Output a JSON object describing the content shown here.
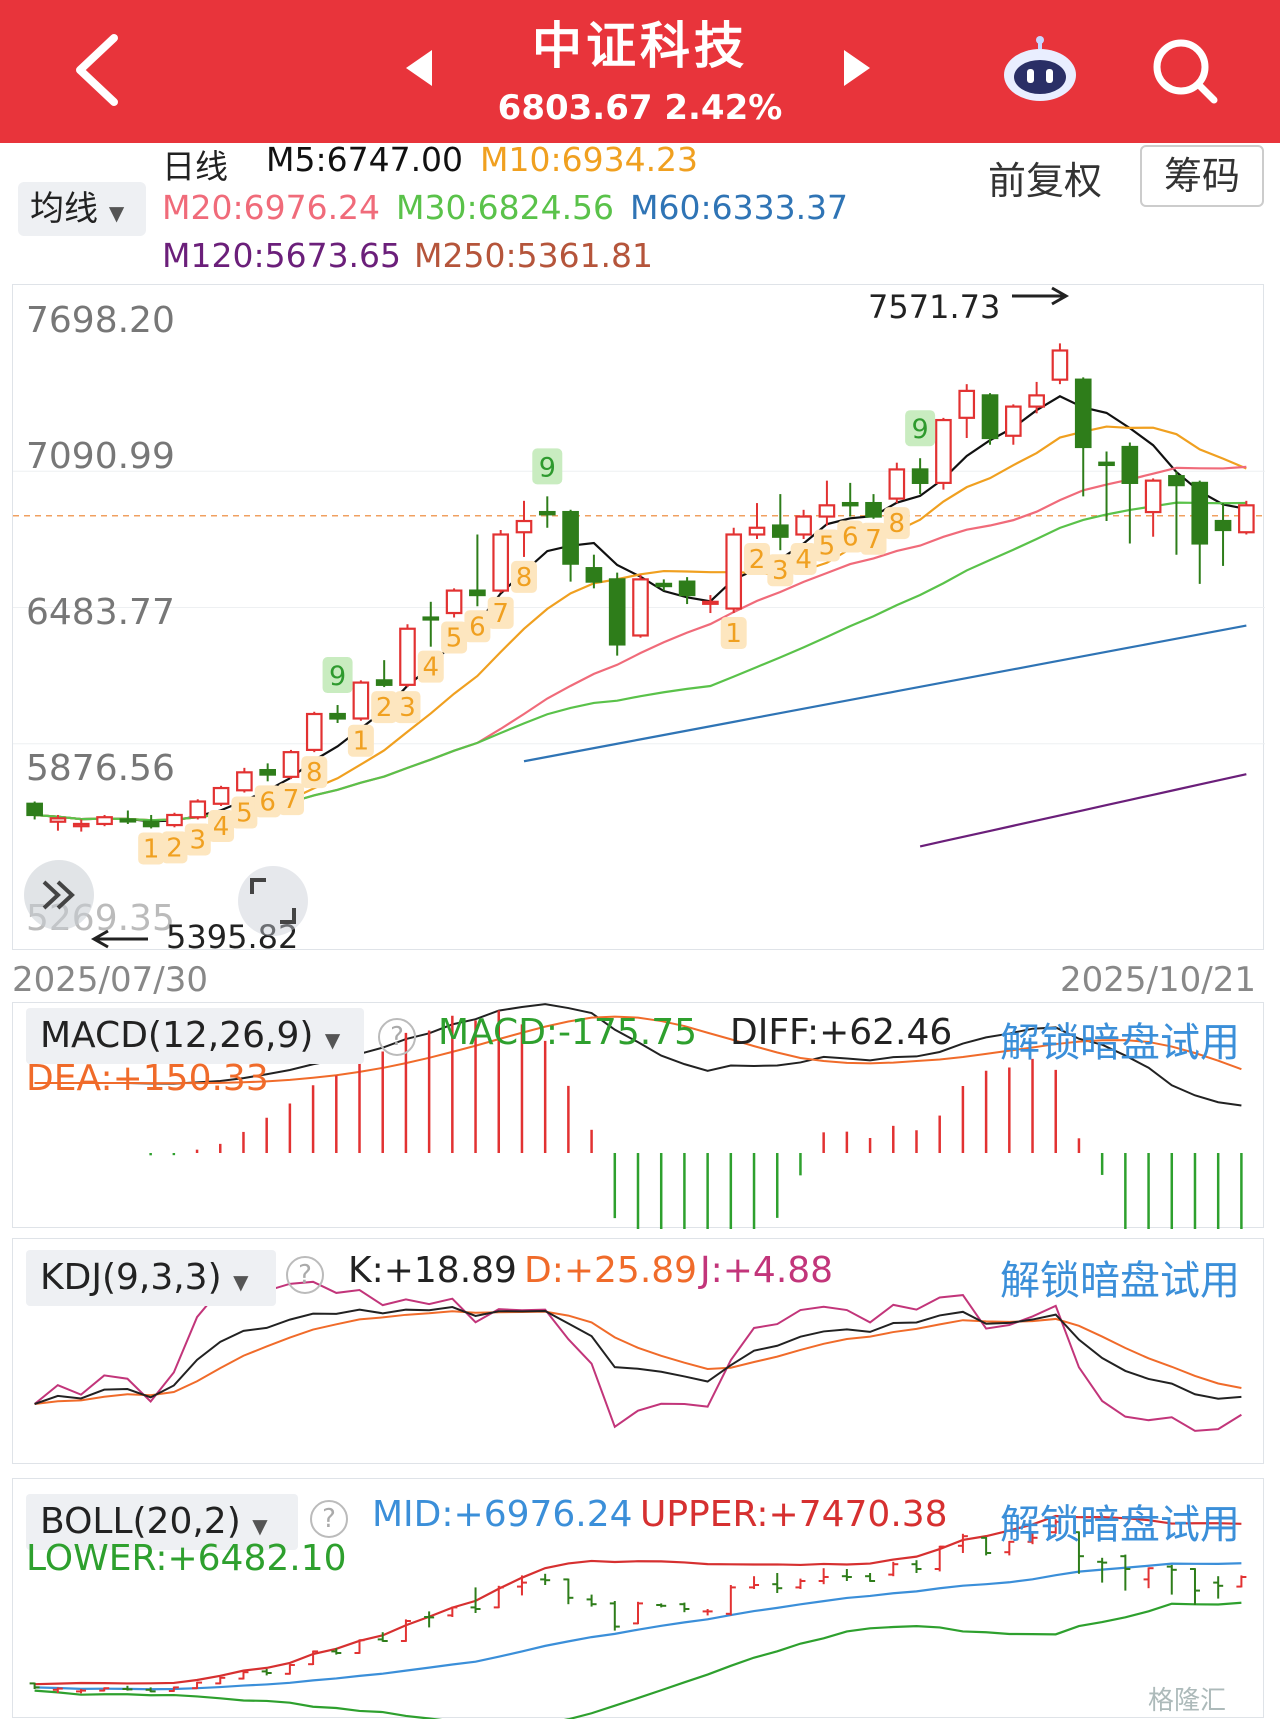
{
  "header": {
    "title": "中证科技",
    "price": "6803.67",
    "change_pct": "2.42%",
    "back_icon": "chevron-left-icon",
    "prev_icon": "triangle-left-icon",
    "next_icon": "triangle-right-icon",
    "robot_icon": "robot-assistant-icon",
    "search_icon": "search-icon",
    "bg_color": "#e8343b"
  },
  "toolbar": {
    "ma_selector": "均线",
    "period": "日线",
    "adjust": "前复权",
    "chips": "筹码"
  },
  "ma_values": {
    "m5": "M5:6747.00",
    "m10": "M10:6934.23",
    "m20": "M20:6976.24",
    "m30": "M30:6824.56",
    "m60": "M60:6333.37",
    "m120": "M120:5673.65",
    "m250": "M250:5361.81",
    "colors": {
      "m5": "#111111",
      "m10": "#f0a020",
      "m20": "#f06b7a",
      "m30": "#5ac24a",
      "m60": "#2f74b5",
      "m120": "#6b1f7a",
      "m250": "#b5553b"
    }
  },
  "main_chart": {
    "y_labels": [
      "7698.20",
      "7090.99",
      "6483.77",
      "5876.56",
      "5269.35"
    ],
    "high_label": "7571.73",
    "low_label": "5395.82",
    "start_date": "2025/07/30",
    "end_date": "2025/10/21",
    "expand_icon": "double-chevron-right-icon",
    "fullscreen_icon": "fullscreen-corner-icon"
  },
  "macd": {
    "selector": "MACD(12,26,9)",
    "macd": "MACD:-175.75",
    "diff": "DIFF:+62.46",
    "dea": "DEA:+150.33",
    "unlock": "解锁暗盘试用"
  },
  "kdj": {
    "selector": "KDJ(9,3,3)",
    "k": "K:+18.89",
    "d": "D:+25.89",
    "j": "J:+4.88",
    "unlock": "解锁暗盘试用"
  },
  "boll": {
    "selector": "BOLL(20,2)",
    "mid": "MID:+6976.24",
    "upper": "UPPER:+7470.38",
    "lower": "LOWER:+6482.10",
    "unlock": "解锁暗盘试用"
  },
  "watermark": "格隆汇",
  "chart_data": {
    "type": "candlestick",
    "x_range": [
      "2025/07/30",
      "2025/10/21"
    ],
    "ylim": [
      5269.35,
      7698.2
    ],
    "high": 7571.73,
    "low": 5395.82,
    "candles": [
      {
        "o": 5520,
        "c": 5470,
        "h": 5530,
        "l": 5450
      },
      {
        "o": 5440,
        "c": 5455,
        "h": 5470,
        "l": 5400
      },
      {
        "o": 5420,
        "c": 5430,
        "h": 5450,
        "l": 5396
      },
      {
        "o": 5430,
        "c": 5460,
        "h": 5470,
        "l": 5420
      },
      {
        "o": 5450,
        "c": 5445,
        "h": 5490,
        "l": 5430
      },
      {
        "o": 5440,
        "c": 5420,
        "h": 5470,
        "l": 5410
      },
      {
        "o": 5425,
        "c": 5470,
        "h": 5480,
        "l": 5415
      },
      {
        "o": 5460,
        "c": 5530,
        "h": 5540,
        "l": 5450
      },
      {
        "o": 5520,
        "c": 5590,
        "h": 5600,
        "l": 5510
      },
      {
        "o": 5580,
        "c": 5660,
        "h": 5680,
        "l": 5570
      },
      {
        "o": 5670,
        "c": 5650,
        "h": 5700,
        "l": 5620
      },
      {
        "o": 5640,
        "c": 5750,
        "h": 5760,
        "l": 5630
      },
      {
        "o": 5760,
        "c": 5920,
        "h": 5930,
        "l": 5750
      },
      {
        "o": 5920,
        "c": 5900,
        "h": 5960,
        "l": 5880
      },
      {
        "o": 5900,
        "c": 6060,
        "h": 6070,
        "l": 5890
      },
      {
        "o": 6070,
        "c": 6050,
        "h": 6160,
        "l": 6040
      },
      {
        "o": 6050,
        "c": 6300,
        "h": 6320,
        "l": 6040
      },
      {
        "o": 6350,
        "c": 6345,
        "h": 6420,
        "l": 6220
      },
      {
        "o": 6370,
        "c": 6470,
        "h": 6480,
        "l": 6350
      },
      {
        "o": 6470,
        "c": 6450,
        "h": 6720,
        "l": 6400
      },
      {
        "o": 6470,
        "c": 6720,
        "h": 6740,
        "l": 6460
      },
      {
        "o": 6730,
        "c": 6780,
        "h": 6870,
        "l": 6620
      },
      {
        "o": 6820,
        "c": 6810,
        "h": 6890,
        "l": 6750
      },
      {
        "o": 6820,
        "c": 6590,
        "h": 6830,
        "l": 6510
      },
      {
        "o": 6570,
        "c": 6510,
        "h": 6630,
        "l": 6480
      },
      {
        "o": 6520,
        "c": 6230,
        "h": 6550,
        "l": 6180
      },
      {
        "o": 6270,
        "c": 6520,
        "h": 6540,
        "l": 6260
      },
      {
        "o": 6500,
        "c": 6490,
        "h": 6520,
        "l": 6470
      },
      {
        "o": 6510,
        "c": 6450,
        "h": 6530,
        "l": 6410
      },
      {
        "o": 6420,
        "c": 6420,
        "h": 6450,
        "l": 6370
      },
      {
        "o": 6390,
        "c": 6720,
        "h": 6750,
        "l": 6370
      },
      {
        "o": 6720,
        "c": 6750,
        "h": 6860,
        "l": 6700
      },
      {
        "o": 6760,
        "c": 6710,
        "h": 6900,
        "l": 6650
      },
      {
        "o": 6720,
        "c": 6800,
        "h": 6830,
        "l": 6700
      },
      {
        "o": 6800,
        "c": 6850,
        "h": 6960,
        "l": 6760
      },
      {
        "o": 6860,
        "c": 6850,
        "h": 6950,
        "l": 6800
      },
      {
        "o": 6860,
        "c": 6800,
        "h": 6900,
        "l": 6790
      },
      {
        "o": 6880,
        "c": 7010,
        "h": 7040,
        "l": 6860
      },
      {
        "o": 7010,
        "c": 6950,
        "h": 7060,
        "l": 6900
      },
      {
        "o": 6950,
        "c": 7230,
        "h": 7240,
        "l": 6920
      },
      {
        "o": 7240,
        "c": 7360,
        "h": 7390,
        "l": 7150
      },
      {
        "o": 7340,
        "c": 7150,
        "h": 7350,
        "l": 7120
      },
      {
        "o": 7160,
        "c": 7290,
        "h": 7300,
        "l": 7120
      },
      {
        "o": 7290,
        "c": 7340,
        "h": 7400,
        "l": 7260
      },
      {
        "o": 7410,
        "c": 7540,
        "h": 7571.73,
        "l": 7390
      },
      {
        "o": 7410,
        "c": 7110,
        "h": 7420,
        "l": 6890
      },
      {
        "o": 7040,
        "c": 7030,
        "h": 7090,
        "l": 6780
      },
      {
        "o": 7110,
        "c": 6950,
        "h": 7130,
        "l": 6680
      },
      {
        "o": 6820,
        "c": 6960,
        "h": 6970,
        "l": 6710
      },
      {
        "o": 6980,
        "c": 6940,
        "h": 7000,
        "l": 6630
      },
      {
        "o": 6950,
        "c": 6680,
        "h": 6960,
        "l": 6500
      },
      {
        "o": 6780,
        "c": 6740,
        "h": 6860,
        "l": 6580
      },
      {
        "o": 6730,
        "c": 6850,
        "h": 6870,
        "l": 6720
      }
    ]
  }
}
